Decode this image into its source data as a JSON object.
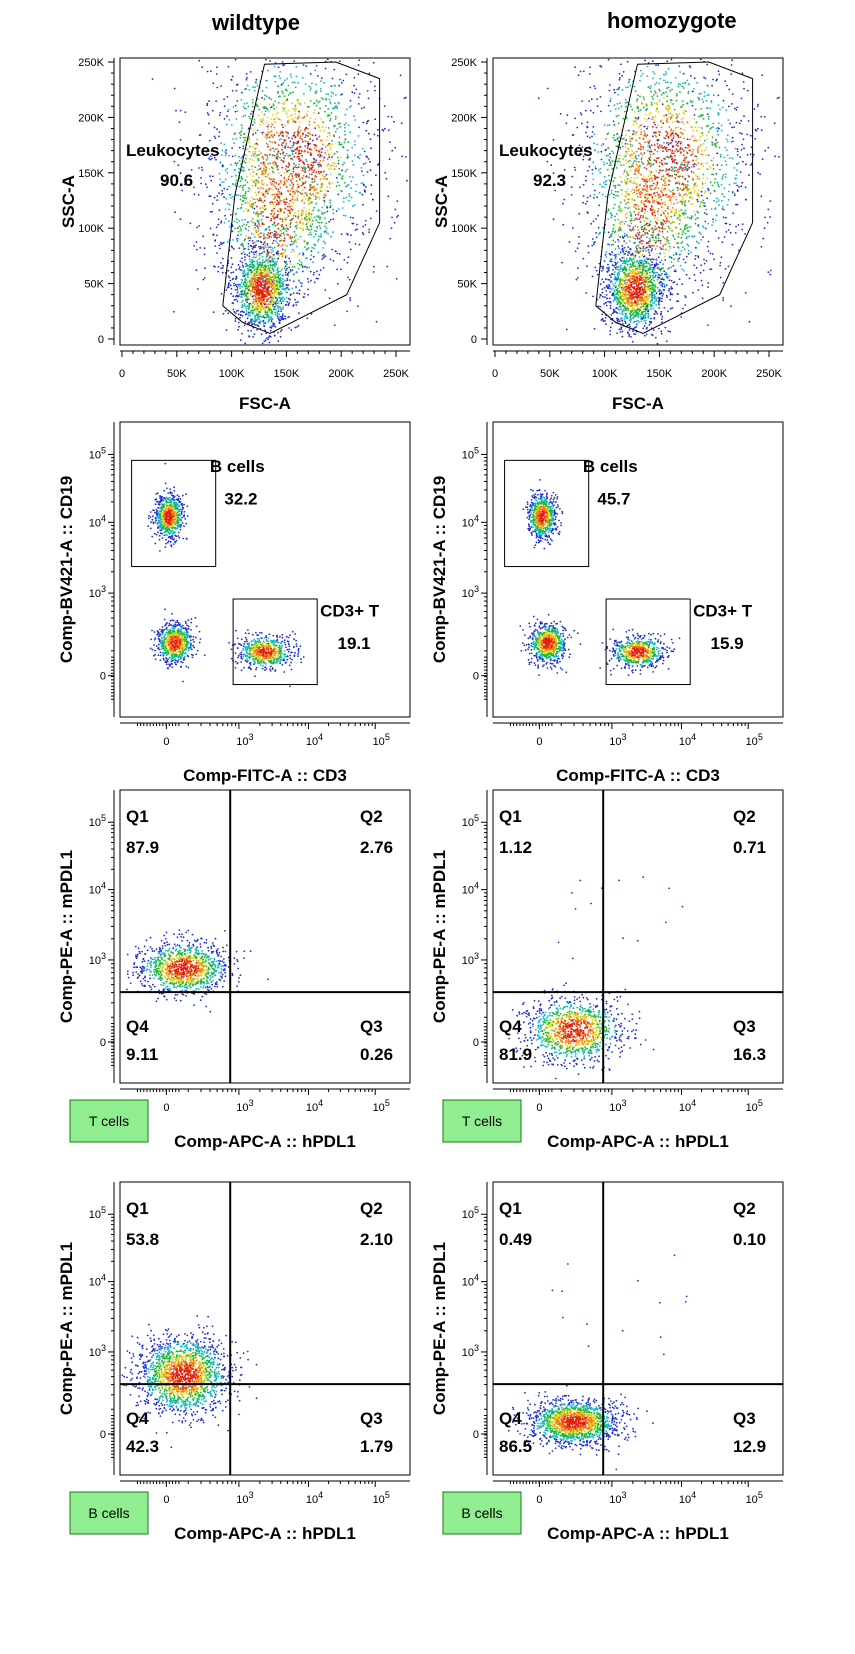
{
  "columns": [
    "wildtype",
    "homozygote"
  ],
  "colors": {
    "dot_blue": "#1f2fd6",
    "dot_cyan": "#13b7c9",
    "dot_green": "#18b83a",
    "dot_yellow": "#e6d21a",
    "dot_orange": "#f07a12",
    "dot_red": "#e0200f",
    "badge_fill": "#90ee90",
    "badge_border": "#1a7a1a"
  },
  "chart_data": [
    {
      "type": "scatter",
      "kind": "gating",
      "column": "wildtype",
      "xlabel": "FSC-A",
      "ylabel": "SSC-A",
      "x_ticks": [
        "0",
        "50K",
        "100K",
        "150K",
        "200K",
        "250K"
      ],
      "y_ticks": [
        "0",
        "50K",
        "100K",
        "150K",
        "200K",
        "250K"
      ],
      "xlim": [
        0,
        250000
      ],
      "ylim": [
        0,
        250000
      ],
      "gates": [
        {
          "name": "Leukocytes",
          "value": "90.6"
        }
      ]
    },
    {
      "type": "scatter",
      "kind": "gating",
      "column": "homozygote",
      "xlabel": "FSC-A",
      "ylabel": "SSC-A",
      "x_ticks": [
        "0",
        "50K",
        "100K",
        "150K",
        "200K",
        "250K"
      ],
      "y_ticks": [
        "0",
        "50K",
        "100K",
        "150K",
        "200K",
        "250K"
      ],
      "xlim": [
        0,
        250000
      ],
      "ylim": [
        0,
        250000
      ],
      "gates": [
        {
          "name": "Leukocytes",
          "value": "92.3"
        }
      ]
    },
    {
      "type": "scatter",
      "kind": "gating",
      "column": "wildtype",
      "xlabel": "Comp-FITC-A :: CD3",
      "ylabel": "Comp-BV421-A :: CD19",
      "x_ticks": [
        "0",
        "10^3",
        "10^4",
        "10^5"
      ],
      "y_ticks": [
        "0",
        "10^3",
        "10^4",
        "10^5"
      ],
      "scale": "biexponential",
      "gates": [
        {
          "name": "B cells",
          "value": "32.2"
        },
        {
          "name": "CD3+ T",
          "value": "19.1"
        }
      ]
    },
    {
      "type": "scatter",
      "kind": "gating",
      "column": "homozygote",
      "xlabel": "Comp-FITC-A :: CD3",
      "ylabel": "Comp-BV421-A :: CD19",
      "x_ticks": [
        "0",
        "10^3",
        "10^4",
        "10^5"
      ],
      "y_ticks": [
        "0",
        "10^3",
        "10^4",
        "10^5"
      ],
      "scale": "biexponential",
      "gates": [
        {
          "name": "B cells",
          "value": "45.7"
        },
        {
          "name": "CD3+ T",
          "value": "15.9"
        }
      ]
    },
    {
      "type": "scatter",
      "kind": "quadrant",
      "column": "wildtype",
      "population": "T cells",
      "xlabel": "Comp-APC-A :: hPDL1",
      "ylabel": "Comp-PE-A :: mPDL1",
      "x_ticks": [
        "0",
        "10^3",
        "10^4",
        "10^5"
      ],
      "y_ticks": [
        "0",
        "10^3",
        "10^4",
        "10^5"
      ],
      "scale": "biexponential",
      "quadrants": [
        {
          "name": "Q1",
          "value": "87.9"
        },
        {
          "name": "Q2",
          "value": "2.76"
        },
        {
          "name": "Q3",
          "value": "0.26"
        },
        {
          "name": "Q4",
          "value": "9.11"
        }
      ]
    },
    {
      "type": "scatter",
      "kind": "quadrant",
      "column": "homozygote",
      "population": "T cells",
      "xlabel": "Comp-APC-A :: hPDL1",
      "ylabel": "Comp-PE-A :: mPDL1",
      "x_ticks": [
        "0",
        "10^3",
        "10^4",
        "10^5"
      ],
      "y_ticks": [
        "0",
        "10^3",
        "10^4",
        "10^5"
      ],
      "scale": "biexponential",
      "quadrants": [
        {
          "name": "Q1",
          "value": "1.12"
        },
        {
          "name": "Q2",
          "value": "0.71"
        },
        {
          "name": "Q3",
          "value": "16.3"
        },
        {
          "name": "Q4",
          "value": "81.9"
        }
      ]
    },
    {
      "type": "scatter",
      "kind": "quadrant",
      "column": "wildtype",
      "population": "B cells",
      "xlabel": "Comp-APC-A :: hPDL1",
      "ylabel": "Comp-PE-A :: mPDL1",
      "x_ticks": [
        "0",
        "10^3",
        "10^4",
        "10^5"
      ],
      "y_ticks": [
        "0",
        "10^3",
        "10^4",
        "10^5"
      ],
      "scale": "biexponential",
      "quadrants": [
        {
          "name": "Q1",
          "value": "53.8"
        },
        {
          "name": "Q2",
          "value": "2.10"
        },
        {
          "name": "Q3",
          "value": "1.79"
        },
        {
          "name": "Q4",
          "value": "42.3"
        }
      ]
    },
    {
      "type": "scatter",
      "kind": "quadrant",
      "column": "homozygote",
      "population": "B cells",
      "xlabel": "Comp-APC-A :: hPDL1",
      "ylabel": "Comp-PE-A :: mPDL1",
      "x_ticks": [
        "0",
        "10^3",
        "10^4",
        "10^5"
      ],
      "y_ticks": [
        "0",
        "10^3",
        "10^4",
        "10^5"
      ],
      "scale": "biexponential",
      "quadrants": [
        {
          "name": "Q1",
          "value": "0.49"
        },
        {
          "name": "Q2",
          "value": "0.10"
        },
        {
          "name": "Q3",
          "value": "12.9"
        },
        {
          "name": "Q4",
          "value": "86.5"
        }
      ]
    }
  ]
}
